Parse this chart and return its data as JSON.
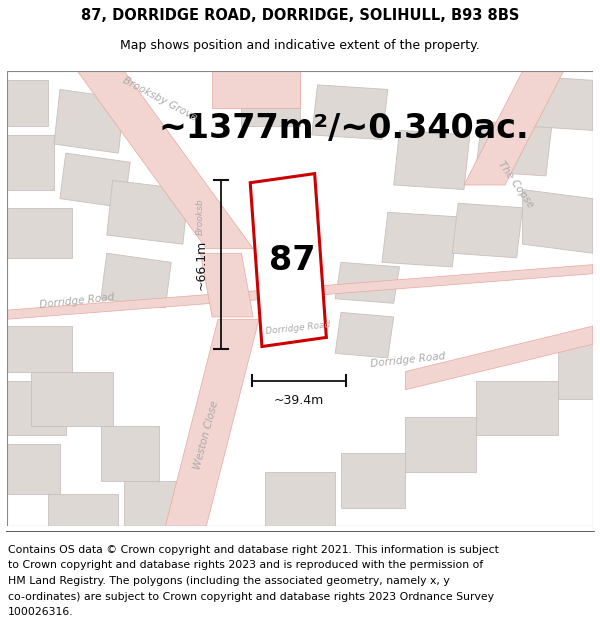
{
  "title_line1": "87, DORRIDGE ROAD, DORRIDGE, SOLIHULL, B93 8BS",
  "title_line2": "Map shows position and indicative extent of the property.",
  "area_text": "~1377m²/~0.340ac.",
  "property_number": "87",
  "dim_height": "~66.1m",
  "dim_width": "~39.4m",
  "footer_lines": [
    "Contains OS data © Crown copyright and database right 2021. This information is subject",
    "to Crown copyright and database rights 2023 and is reproduced with the permission of",
    "HM Land Registry. The polygons (including the associated geometry, namely x, y",
    "co-ordinates) are subject to Crown copyright and database rights 2023 Ordnance Survey",
    "100026316."
  ],
  "map_bg": "#f7f0ee",
  "road_fill": "#f2d4d0",
  "road_edge": "#e8a8a0",
  "building_fill": "#ddd8d4",
  "building_edge": "#c8c0bc",
  "property_fill": "#ffffff",
  "property_edge": "#cc0000",
  "dim_color": "#111111",
  "label_color": "#888888",
  "title_fontsize": 10.5,
  "subtitle_fontsize": 9,
  "area_fontsize": 24,
  "number_fontsize": 24,
  "dim_fontsize": 9,
  "road_label_fontsize": 7.5,
  "footer_fontsize": 7.8,
  "road_label_color": "#aaaaaa"
}
